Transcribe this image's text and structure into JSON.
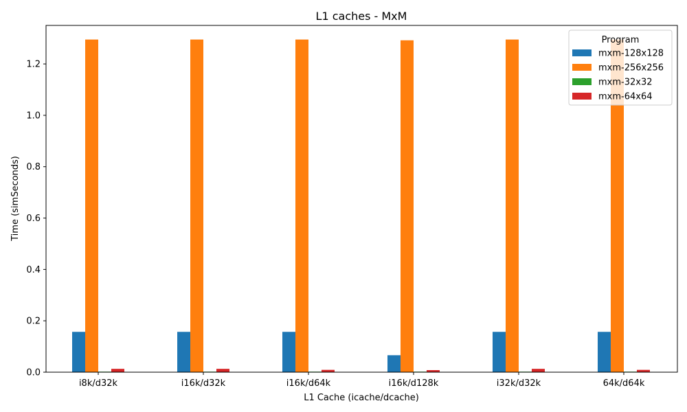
{
  "chart_data": {
    "type": "bar",
    "title": "L1 caches - MxM",
    "xlabel": "L1 Cache (icache/dcache)",
    "ylabel": "Time (simSeconds)",
    "ylim": [
      0,
      1.35
    ],
    "yticks": [
      0.0,
      0.2,
      0.4,
      0.6,
      0.8,
      1.0,
      1.2
    ],
    "ytick_labels": [
      "0.0",
      "0.2",
      "0.4",
      "0.6",
      "0.8",
      "1.0",
      "1.2"
    ],
    "categories": [
      "i8k/d32k",
      "i16k/d32k",
      "i16k/d64k",
      "i16k/d128k",
      "i32k/d32k",
      "64k/d64k"
    ],
    "legend": {
      "title": "Program",
      "position": "top-right"
    },
    "grid": false,
    "series": [
      {
        "name": "mxm-128x128",
        "color": "#1f77b4",
        "values": [
          0.157,
          0.157,
          0.157,
          0.066,
          0.157,
          0.157
        ]
      },
      {
        "name": "mxm-256x256",
        "color": "#ff7f0e",
        "values": [
          1.295,
          1.295,
          1.295,
          1.292,
          1.295,
          1.295
        ]
      },
      {
        "name": "mxm-32x32",
        "color": "#2ca02c",
        "values": [
          0.002,
          0.002,
          0.002,
          0.002,
          0.002,
          0.002
        ]
      },
      {
        "name": "mxm-64x64",
        "color": "#d62728",
        "values": [
          0.013,
          0.013,
          0.009,
          0.008,
          0.013,
          0.009
        ]
      }
    ]
  }
}
